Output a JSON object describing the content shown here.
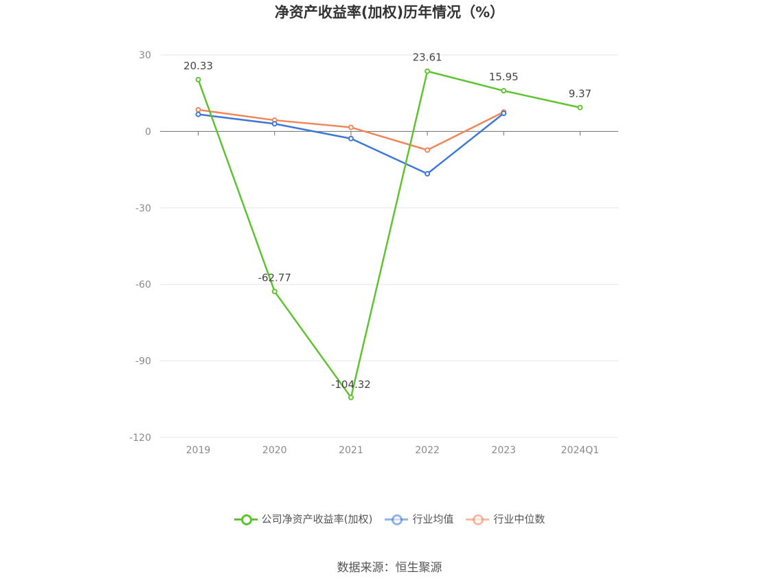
{
  "title": "净资产收益率(加权)历年情况（%）",
  "source": "数据来源：恒生聚源",
  "chart_data": {
    "type": "line",
    "categories": [
      "2019",
      "2020",
      "2021",
      "2022",
      "2023",
      "2024Q1"
    ],
    "ylim": [
      -120,
      30
    ],
    "yticks": [
      30,
      0,
      -30,
      -60,
      -90,
      -120
    ],
    "grid": true,
    "legend_position": "bottom",
    "series": [
      {
        "name": "公司净资产收益率(加权)",
        "color": "#5ec32f",
        "values": [
          20.33,
          -62.77,
          -104.32,
          23.61,
          15.95,
          9.37
        ],
        "labels": [
          "20.33",
          "-62.77",
          "-104.32",
          "23.61",
          "15.95",
          "9.37"
        ]
      },
      {
        "name": "行业均值",
        "color": "#3d78d8",
        "values": [
          6.7,
          3.0,
          -2.8,
          -16.6,
          7.1,
          null
        ]
      },
      {
        "name": "行业中位数",
        "color": "#f08659",
        "values": [
          8.5,
          4.4,
          1.6,
          -7.3,
          7.6,
          null
        ]
      }
    ]
  }
}
